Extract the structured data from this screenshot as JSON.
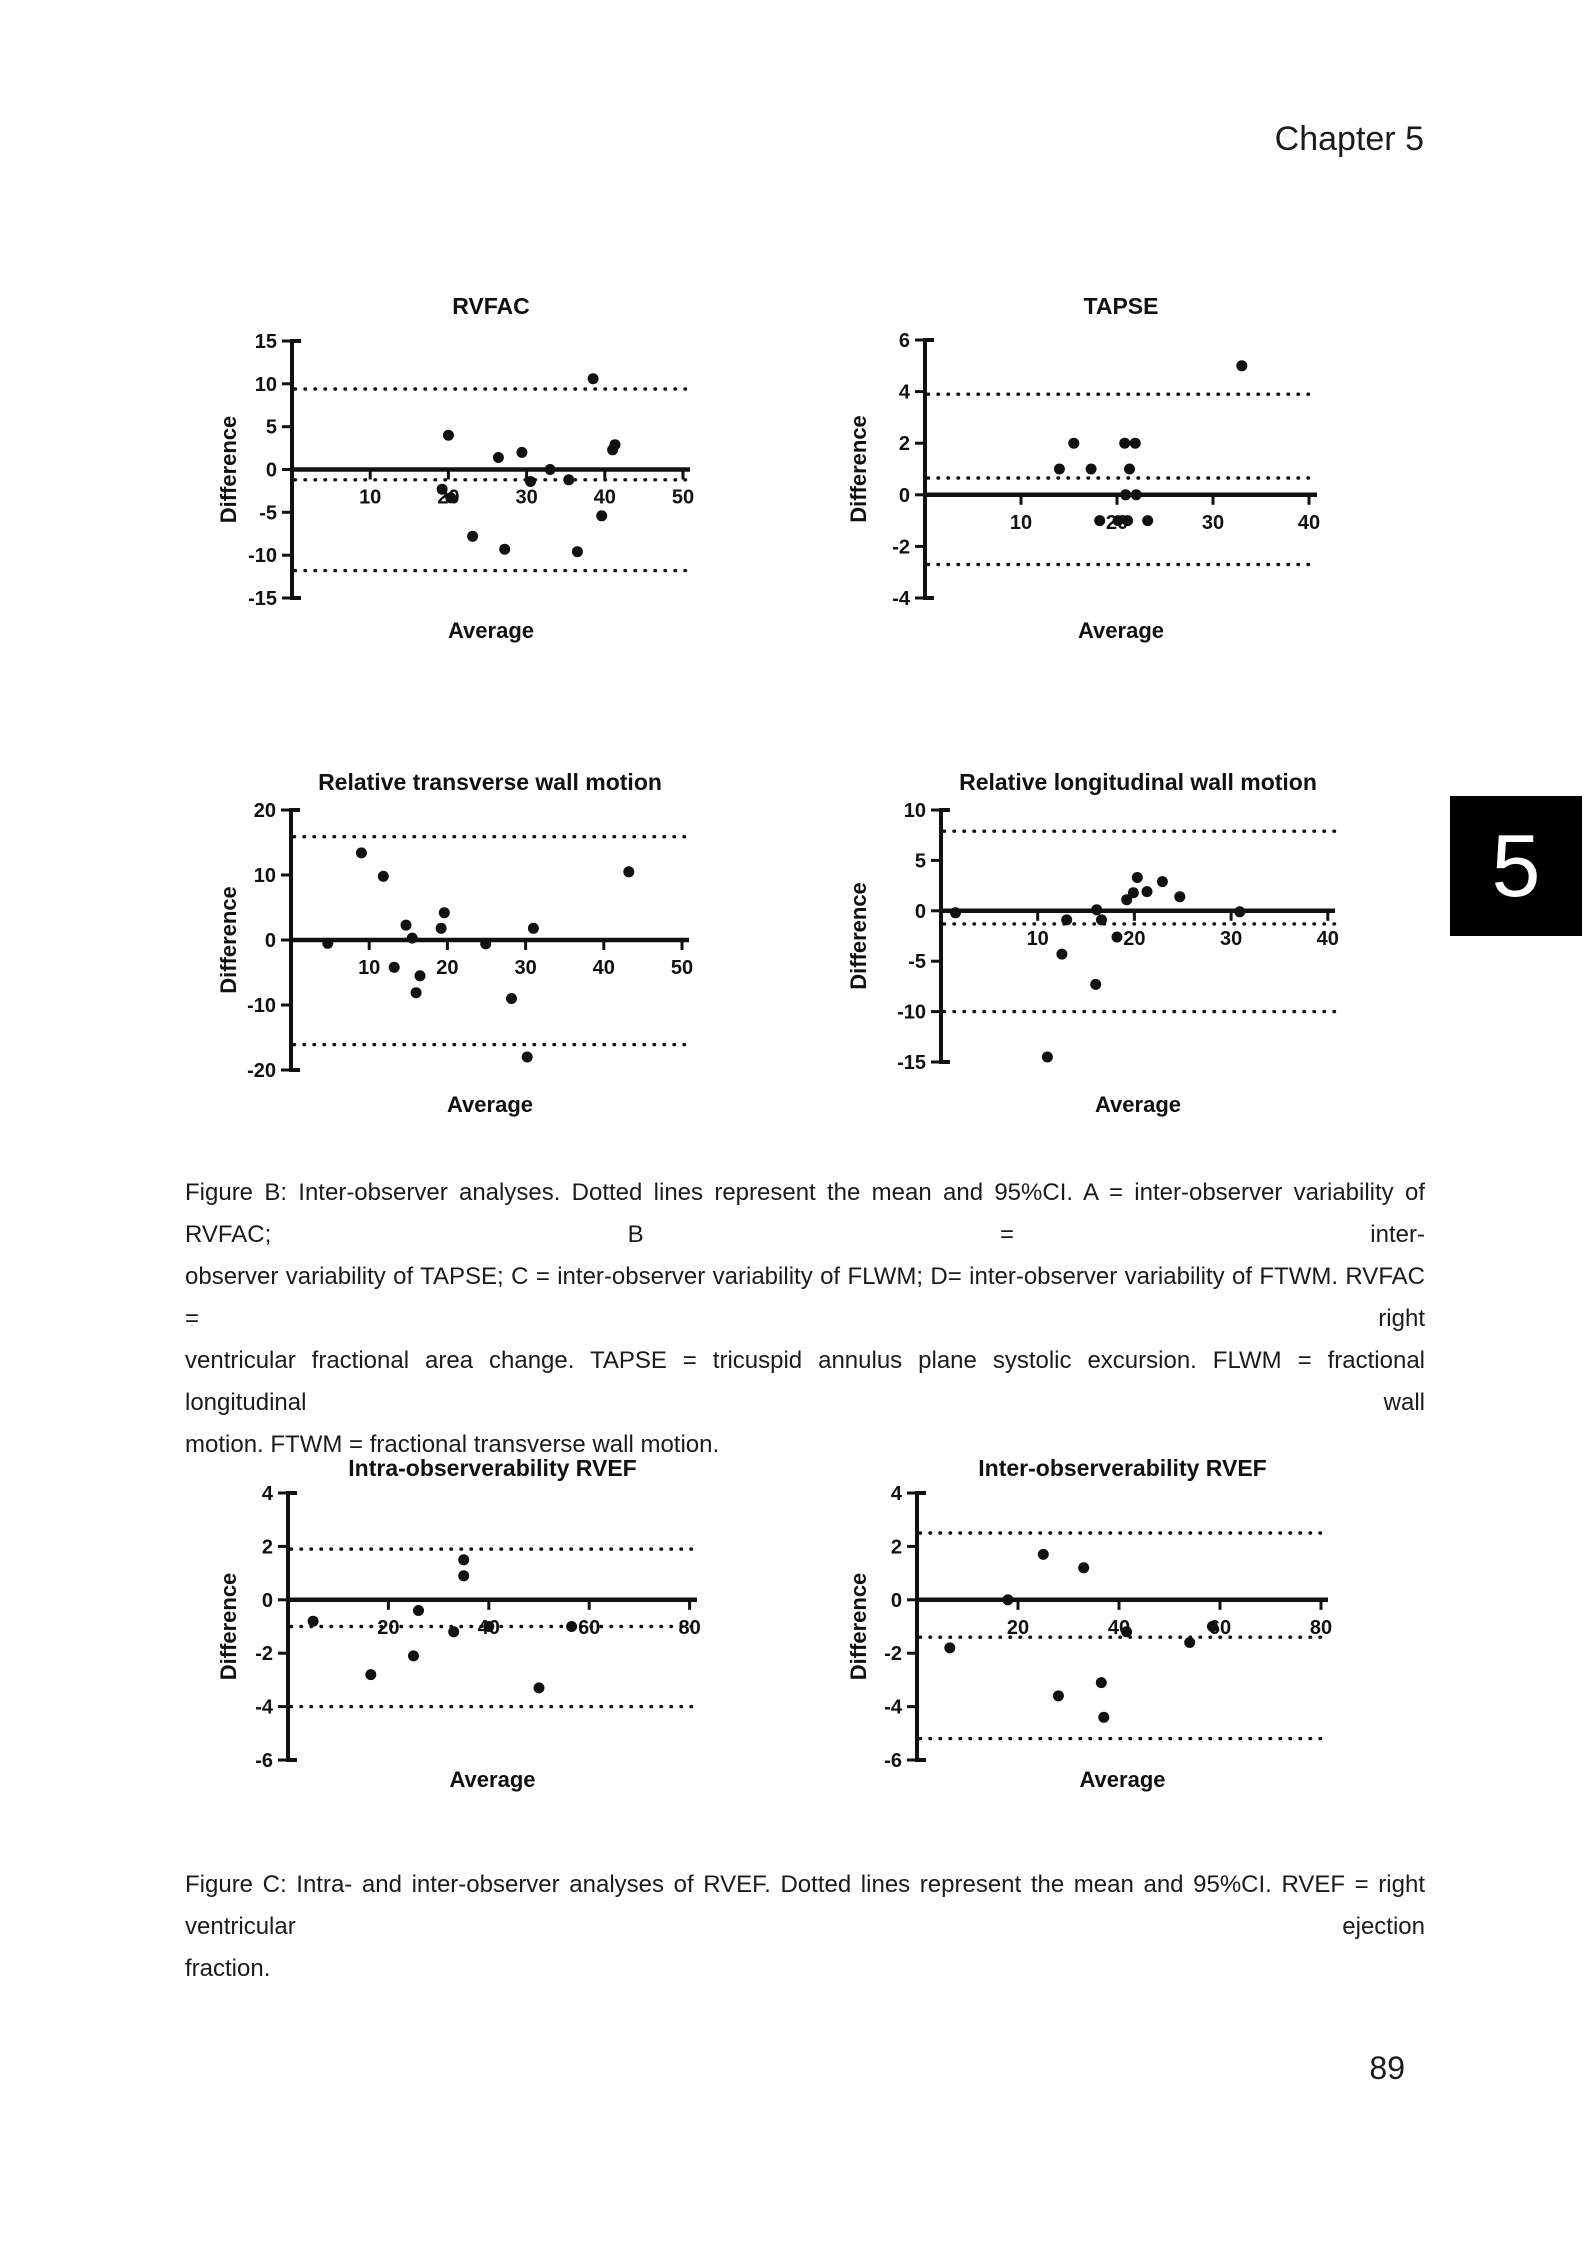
{
  "page": {
    "header": "Chapter 5",
    "page_number": "89",
    "chapter_tab_number": "5"
  },
  "colors": {
    "ink": "#111111",
    "text": "#1b1b1b",
    "tab_bg": "#000000",
    "tab_fg": "#ffffff"
  },
  "captions": {
    "figure_b": {
      "lines": [
        "Figure B: Inter-observer analyses. Dotted lines represent the mean and 95%CI. A = inter-observer variability of RVFAC; B = inter-",
        "observer variability of TAPSE; C = inter-observer variability of FLWM; D= inter-observer variability of FTWM. RVFAC = right",
        "ventricular fractional area change. TAPSE = tricuspid annulus plane systolic excursion. FLWM = fractional longitudinal wall",
        "motion. FTWM = fractional transverse wall motion."
      ]
    },
    "figure_c": {
      "lines": [
        "Figure C: Intra- and inter-observer analyses of RVEF. Dotted lines represent the mean and 95%CI. RVEF = right ventricular ejection",
        "fraction."
      ]
    }
  },
  "chart_data": [
    {
      "type": "scatter",
      "title": "RVFAC",
      "xlabel": "Average",
      "ylabel": "Difference",
      "xlim": [
        0,
        50
      ],
      "ylim": [
        -15,
        15
      ],
      "xticks": [
        10,
        20,
        30,
        40,
        50
      ],
      "yticks": [
        -15,
        -10,
        -5,
        0,
        5,
        10,
        15
      ],
      "dotted_lines": [
        9.4,
        -1.2,
        -11.8
      ],
      "points": [
        [
          20,
          4
        ],
        [
          19.2,
          -2.3
        ],
        [
          20.3,
          -3.3
        ],
        [
          23.1,
          -7.8
        ],
        [
          26.4,
          1.4
        ],
        [
          27.2,
          -9.3
        ],
        [
          29.4,
          2
        ],
        [
          30.5,
          -1.4
        ],
        [
          33,
          0
        ],
        [
          35.4,
          -1.2
        ],
        [
          36.5,
          -9.6
        ],
        [
          38.5,
          10.6
        ],
        [
          39.6,
          -5.4
        ],
        [
          41,
          2.3
        ],
        [
          41.3,
          2.9
        ]
      ]
    },
    {
      "type": "scatter",
      "title": "TAPSE",
      "xlabel": "Average",
      "ylabel": "Difference",
      "xlim": [
        0,
        40
      ],
      "ylim": [
        -4,
        6
      ],
      "xticks": [
        10,
        20,
        30,
        40
      ],
      "yticks": [
        -4,
        -2,
        0,
        2,
        4,
        6
      ],
      "dotted_lines": [
        3.9,
        0.65,
        -2.7
      ],
      "points": [
        [
          14,
          1
        ],
        [
          15.5,
          2
        ],
        [
          17.3,
          1
        ],
        [
          18.2,
          -1
        ],
        [
          20.1,
          -1
        ],
        [
          20.8,
          2
        ],
        [
          20.9,
          0
        ],
        [
          21.1,
          -1
        ],
        [
          21.3,
          1
        ],
        [
          21.9,
          2
        ],
        [
          22,
          0
        ],
        [
          23.2,
          -1
        ],
        [
          33,
          5
        ]
      ]
    },
    {
      "type": "scatter",
      "title": "Relative transverse wall motion",
      "xlabel": "Average",
      "ylabel": "Difference",
      "xlim": [
        0,
        50
      ],
      "ylim": [
        -20,
        20
      ],
      "xticks": [
        10,
        20,
        30,
        40,
        50
      ],
      "yticks": [
        -20,
        -10,
        0,
        10,
        20
      ],
      "dotted_lines": [
        15.9,
        -16.1
      ],
      "points": [
        [
          4.7,
          -0.5
        ],
        [
          9,
          13.4
        ],
        [
          11.8,
          9.8
        ],
        [
          13.2,
          -4.2
        ],
        [
          14.7,
          2.3
        ],
        [
          15.5,
          0.3
        ],
        [
          16,
          -8.1
        ],
        [
          16.5,
          -5.5
        ],
        [
          19.2,
          1.8
        ],
        [
          19.6,
          4.2
        ],
        [
          24.9,
          -0.6
        ],
        [
          28.2,
          -9
        ],
        [
          30.2,
          -18
        ],
        [
          31,
          1.8
        ],
        [
          43.2,
          10.5
        ]
      ]
    },
    {
      "type": "scatter",
      "title": "Relative longitudinal wall motion",
      "xlabel": "Average",
      "ylabel": "Difference",
      "xlim": [
        0,
        40
      ],
      "ylim": [
        -15,
        10
      ],
      "xticks": [
        10,
        20,
        30,
        40
      ],
      "yticks": [
        -15,
        -10,
        -5,
        0,
        5,
        10
      ],
      "dotted_lines": [
        7.9,
        -1.3,
        -10
      ],
      "points": [
        [
          1.5,
          -0.2
        ],
        [
          11,
          -14.5
        ],
        [
          12.5,
          -4.3
        ],
        [
          13,
          -0.9
        ],
        [
          16,
          -7.3
        ],
        [
          16.1,
          0.1
        ],
        [
          16.6,
          -0.9
        ],
        [
          18.2,
          -2.6
        ],
        [
          19.2,
          1.1
        ],
        [
          19.9,
          1.8
        ],
        [
          20.3,
          3.3
        ],
        [
          21.3,
          1.9
        ],
        [
          22.9,
          2.9
        ],
        [
          24.7,
          1.4
        ],
        [
          30.9,
          -0.1
        ]
      ]
    },
    {
      "type": "scatter",
      "title": "Intra-observerability RVEF",
      "xlabel": "Average",
      "ylabel": "Difference",
      "xlim": [
        0,
        80
      ],
      "ylim": [
        -6,
        4
      ],
      "xticks": [
        20,
        40,
        60,
        80
      ],
      "yticks": [
        -6,
        -4,
        -2,
        0,
        2,
        4
      ],
      "dotted_lines": [
        1.9,
        -1.0,
        -4.0
      ],
      "points": [
        [
          5,
          -0.8
        ],
        [
          16.5,
          -2.8
        ],
        [
          25,
          -2.1
        ],
        [
          26,
          -0.4
        ],
        [
          33,
          -1.2
        ],
        [
          35,
          0.9
        ],
        [
          35,
          1.5
        ],
        [
          40,
          -1.0
        ],
        [
          50,
          -3.3
        ],
        [
          56.5,
          -1.0
        ]
      ]
    },
    {
      "type": "scatter",
      "title": "Inter-observerability RVEF",
      "xlabel": "Average",
      "ylabel": "Difference",
      "xlim": [
        0,
        80
      ],
      "ylim": [
        -6,
        4
      ],
      "xticks": [
        20,
        40,
        60,
        80
      ],
      "yticks": [
        -6,
        -4,
        -2,
        0,
        2,
        4
      ],
      "dotted_lines": [
        2.5,
        -1.4,
        -5.2
      ],
      "points": [
        [
          6.5,
          -1.8
        ],
        [
          18,
          0
        ],
        [
          25,
          1.7
        ],
        [
          28,
          -3.6
        ],
        [
          33,
          1.2
        ],
        [
          36.5,
          -3.1
        ],
        [
          37,
          -4.4
        ],
        [
          41.5,
          -1.2
        ],
        [
          54,
          -1.6
        ],
        [
          58.5,
          -1.0
        ]
      ]
    }
  ]
}
